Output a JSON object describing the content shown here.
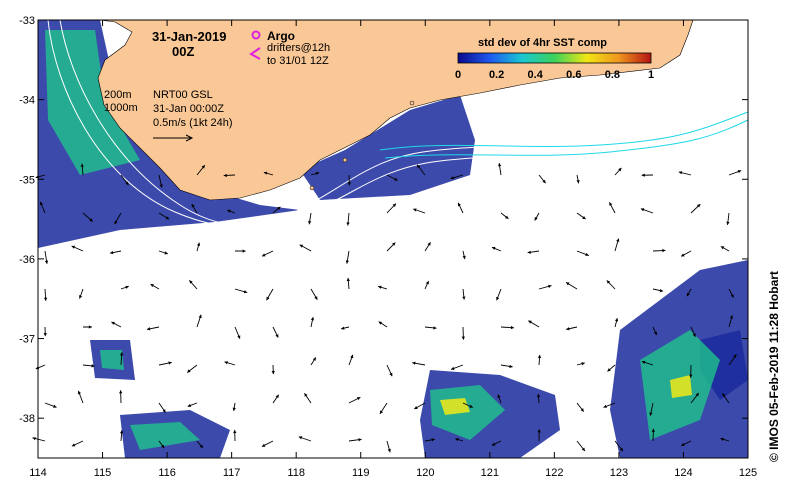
{
  "map": {
    "lon_range": [
      114,
      125
    ],
    "lat_range": [
      -38.5,
      -33
    ],
    "lon_ticks": [
      "114",
      "115",
      "116",
      "117",
      "118",
      "119",
      "120",
      "121",
      "122",
      "123",
      "124",
      "125"
    ],
    "lat_ticks": [
      "-33",
      "-34",
      "-35",
      "-36",
      "-37",
      "-38"
    ],
    "land_color": "#fac896",
    "ocean_color": "#ffffff",
    "sst_low_color": "#1a2a9c",
    "sst_mid_color": "#1ec38c",
    "sst_high_color": "#e6e61e"
  },
  "annotations": {
    "date": "31-Jan-2019",
    "time": "00Z",
    "argo_label": "Argo",
    "drifters_line1": "drifters@12h",
    "drifters_line2": "to 31/01 12Z",
    "contour_200": "200m",
    "contour_1000": "1000m",
    "product": "NRT00 GSL",
    "product_time": "31-Jan 00:00Z",
    "scale_label": "0.5m/s (1kt 24h)"
  },
  "colorbar": {
    "title": "std dev of 4hr SST comp",
    "ticks": [
      "0",
      "0.2",
      "0.4",
      "0.6",
      "0.8",
      "1"
    ],
    "stops": [
      "#0a0a8c",
      "#1f5af0",
      "#19c8d2",
      "#3cd25a",
      "#f0e614",
      "#f0961e",
      "#b41414"
    ]
  },
  "credit": "© IMOS 05-Feb-2019 11:28 Hobart",
  "icons": {
    "argo": "argo-float-icon",
    "drifter": "drifter-chevron-icon"
  }
}
